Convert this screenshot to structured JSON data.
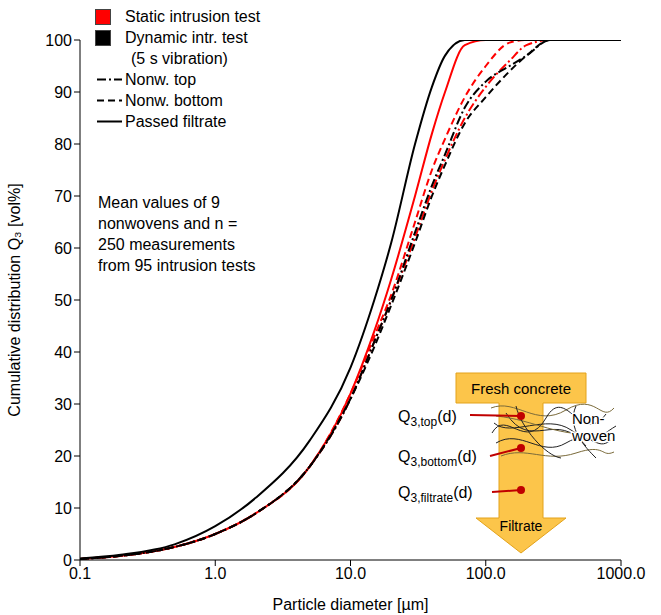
{
  "chart_data": {
    "type": "line",
    "x_label": "Particle diameter [µm]",
    "y_label": "Cumulative distribution Q₃ [vol%]",
    "log": "x",
    "grid": false,
    "legend": "upper left",
    "xlim": [
      0.1,
      1000
    ],
    "xticks": [
      0.1,
      {
        "value": 1,
        "label": "1.0"
      },
      {
        "value": 10,
        "label": "10.0"
      },
      {
        "value": 100,
        "label": "100.0"
      },
      {
        "value": 1000,
        "label": "1000.0"
      }
    ],
    "ylim": [
      0,
      100
    ],
    "yticks": [
      0,
      10,
      20,
      30,
      40,
      50,
      60,
      70,
      80,
      90,
      100
    ],
    "legend_entries": {
      "tests": [
        {
          "name": "Static intrusion test",
          "color": "#ff0000"
        },
        {
          "name": "Dynamic intr. test (5 s vibration)",
          "color": "#000000"
        }
      ],
      "positions": [
        {
          "name": "Nonw. top",
          "line_style": "dashdot"
        },
        {
          "name": "Nonw. bottom",
          "line_style": "dashed"
        },
        {
          "name": "Passed filtrate",
          "line_style": "solid"
        }
      ]
    },
    "annotation": "Mean values of 9 nonwovens and n = 250 measurements from 95 intrusion tests",
    "series": [
      {
        "test": "Static intrusion test",
        "position": "Nonw. top",
        "color": "#ff0000",
        "line_style": "dashdot",
        "x": [
          0.1,
          0.2,
          0.5,
          1,
          2,
          5,
          10,
          15,
          20,
          30,
          40,
          50,
          70,
          100,
          150,
          200,
          300,
          1000
        ],
        "values": [
          0.2,
          0.8,
          2.5,
          5,
          9,
          18,
          31,
          42,
          50,
          62,
          71,
          77,
          85,
          91,
          96,
          99,
          100,
          100
        ]
      },
      {
        "test": "Static intrusion test",
        "position": "Nonw. bottom",
        "color": "#ff0000",
        "line_style": "dashed",
        "x": [
          0.1,
          0.2,
          0.5,
          1,
          2,
          5,
          10,
          15,
          20,
          30,
          40,
          50,
          70,
          100,
          150,
          200,
          1000
        ],
        "values": [
          0.2,
          0.8,
          2.5,
          5,
          9,
          18,
          32,
          43,
          51,
          65,
          75,
          81,
          89,
          95,
          99.5,
          100,
          100
        ]
      },
      {
        "test": "Static intrusion test",
        "position": "Passed filtrate",
        "color": "#ff0000",
        "line_style": "solid",
        "x": [
          0.1,
          0.2,
          0.5,
          1,
          2,
          5,
          10,
          15,
          20,
          30,
          40,
          50,
          70,
          100,
          1000
        ],
        "values": [
          0.2,
          0.8,
          2.5,
          5,
          9,
          18,
          32,
          44,
          54,
          70,
          82,
          90,
          99,
          100,
          100
        ]
      },
      {
        "test": "Dynamic intr. test (5 s vibration)",
        "position": "Nonw. top",
        "color": "#000000",
        "line_style": "dashdot",
        "x": [
          0.1,
          0.2,
          0.5,
          1,
          2,
          5,
          10,
          15,
          20,
          30,
          40,
          50,
          70,
          100,
          150,
          200,
          300,
          1000
        ],
        "values": [
          0.2,
          0.8,
          2.5,
          5,
          9,
          18,
          31,
          42,
          50,
          63,
          72,
          78,
          87,
          92,
          95,
          97,
          100,
          100
        ]
      },
      {
        "test": "Dynamic intr. test (5 s vibration)",
        "position": "Nonw. bottom",
        "color": "#000000",
        "line_style": "dashed",
        "x": [
          0.1,
          0.2,
          0.5,
          1,
          2,
          5,
          10,
          15,
          20,
          30,
          40,
          50,
          70,
          100,
          150,
          200,
          300,
          1000
        ],
        "values": [
          0.2,
          0.8,
          2.5,
          5,
          9,
          18,
          31,
          41,
          49,
          61,
          70,
          76,
          84,
          89,
          94,
          97,
          100,
          100
        ]
      },
      {
        "test": "Dynamic intr. test (5 s vibration)",
        "position": "Passed filtrate",
        "color": "#000000",
        "line_style": "solid",
        "x": [
          0.1,
          0.2,
          0.5,
          1,
          2,
          5,
          10,
          15,
          20,
          30,
          40,
          50,
          70,
          1000
        ],
        "values": [
          0.3,
          1,
          3,
          6.5,
          12,
          23,
          37,
          50,
          61,
          80,
          91,
          97,
          100,
          100
        ]
      }
    ],
    "inset": {
      "top_label": "Fresh concrete",
      "side_label": "Non-woven",
      "bottom_label": "Filtrate",
      "points": [
        {
          "symbol": "Q",
          "subscript": "3,top",
          "argument": "(d)"
        },
        {
          "symbol": "Q",
          "subscript": "3,bottom",
          "argument": "(d)"
        },
        {
          "symbol": "Q",
          "subscript": "3,filtrate",
          "argument": "(d)"
        }
      ]
    }
  }
}
